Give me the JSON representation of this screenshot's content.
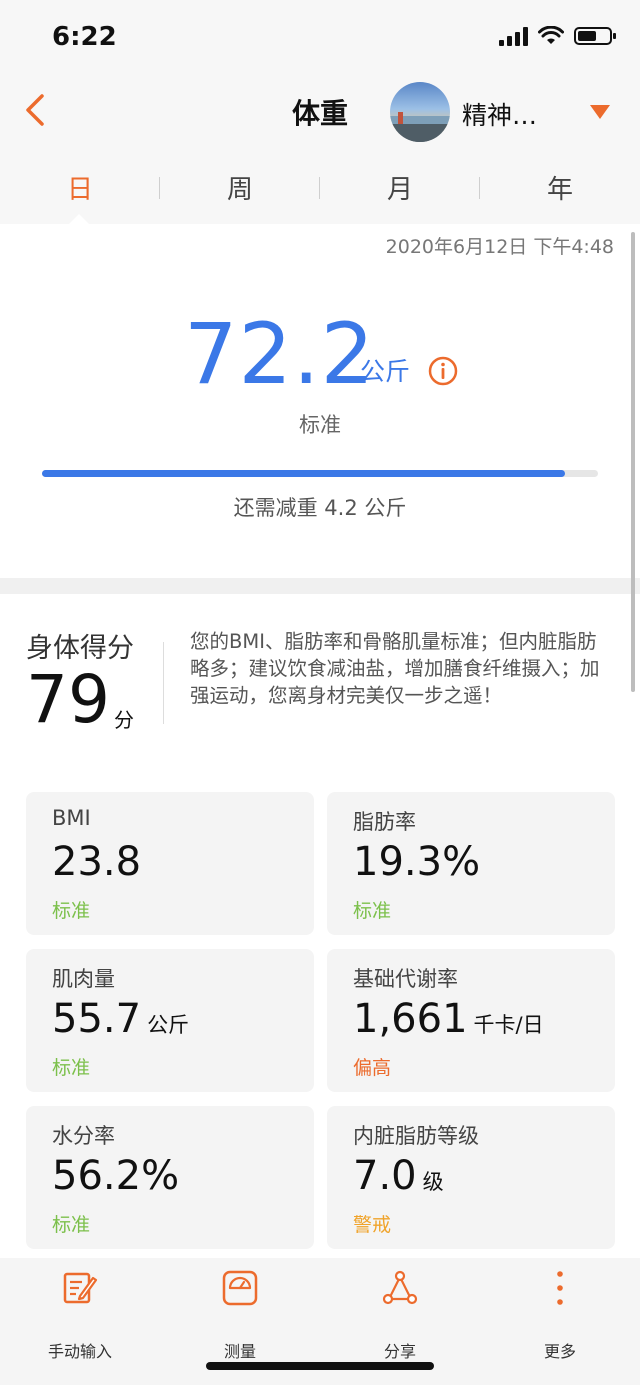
{
  "status_bar": {
    "time": "6:22",
    "battery_level": 0.6
  },
  "header": {
    "title": "体重",
    "user_name": "精神…"
  },
  "tabs": [
    {
      "label": "日"
    },
    {
      "label": "周"
    },
    {
      "label": "月"
    },
    {
      "label": "年"
    }
  ],
  "summary": {
    "timestamp": "2020年6月12日 下午4:48",
    "weight": "72.2",
    "unit": "公斤",
    "status": "标准",
    "progress": 0.94,
    "progress_label": "还需减重 4.2 公斤"
  },
  "body_score": {
    "label": "身体得分",
    "score": "79",
    "unit": "分",
    "advice": "您的BMI、脂肪率和骨骼肌量标准；但内脏脂肪略多；建议饮食减油盐，增加膳食纤维摄入；加强运动，您离身材完美仅一步之遥！"
  },
  "metrics": [
    {
      "label": "BMI",
      "value": "23.8",
      "unit": "",
      "status": "标准",
      "status_color": "#7cc04b"
    },
    {
      "label": "脂肪率",
      "value": "19.3%",
      "unit": "",
      "status": "标准",
      "status_color": "#7cc04b"
    },
    {
      "label": "肌肉量",
      "value": "55.7",
      "unit": "公斤",
      "status": "标准",
      "status_color": "#7cc04b"
    },
    {
      "label": "基础代谢率",
      "value": "1,661",
      "unit": "千卡/日",
      "status": "偏高",
      "status_color": "#ec6b2d"
    },
    {
      "label": "水分率",
      "value": "56.2%",
      "unit": "",
      "status": "标准",
      "status_color": "#7cc04b"
    },
    {
      "label": "内脏脂肪等级",
      "value": "7.0",
      "unit": "级",
      "status": "警戒",
      "status_color": "#f0a32a"
    }
  ],
  "bottom_bar": [
    {
      "label": "手动输入",
      "icon": "edit-icon"
    },
    {
      "label": "测量",
      "icon": "scale-icon"
    },
    {
      "label": "分享",
      "icon": "share-icon"
    },
    {
      "label": "更多",
      "icon": "more-icon"
    }
  ],
  "colors": {
    "accent": "#ec6b2d",
    "primary_blue": "#3b78e7",
    "standard_green": "#7cc04b"
  }
}
